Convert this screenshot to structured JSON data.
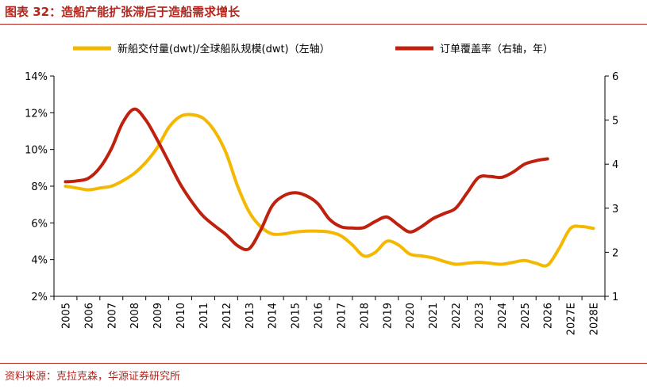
{
  "figure": {
    "title": "图表 32：造船产能扩张滞后于造船需求增长",
    "source": "资料来源：克拉克森，华源证券研究所"
  },
  "chart_data": {
    "type": "line",
    "categories": [
      "2005",
      "2006",
      "2007",
      "2008",
      "2009",
      "2010",
      "2011",
      "2012",
      "2013",
      "2014",
      "2015",
      "2016",
      "2017",
      "2018",
      "2019",
      "2020",
      "2021",
      "2022",
      "2023",
      "2024",
      "2025",
      "2026",
      "2027E",
      "2028E"
    ],
    "y_left": {
      "ylim": [
        0.02,
        0.14
      ],
      "ticks": [
        0.02,
        0.04,
        0.06,
        0.08,
        0.1,
        0.12,
        0.14
      ],
      "tick_labels": [
        "2%",
        "4%",
        "6%",
        "8%",
        "10%",
        "12%",
        "14%"
      ]
    },
    "y_right": {
      "ylim": [
        1,
        6
      ],
      "ticks": [
        1,
        2,
        3,
        4,
        5,
        6
      ],
      "tick_labels": [
        "1",
        "2",
        "3",
        "4",
        "5",
        "6"
      ]
    },
    "legend_position": "top",
    "grid": false,
    "series": [
      {
        "name": "新船交付量(dwt)/全球船队规模(dwt)（左轴）",
        "axis": "left",
        "color": "#f5b800",
        "x": [
          2005,
          2005.5,
          2006,
          2006.5,
          2007,
          2007.5,
          2008,
          2008.5,
          2009,
          2009.5,
          2010,
          2010.5,
          2011,
          2011.5,
          2012,
          2012.5,
          2013,
          2013.5,
          2014,
          2014.5,
          2015,
          2015.5,
          2016,
          2016.5,
          2017,
          2017.5,
          2018,
          2018.5,
          2019,
          2019.5,
          2020,
          2020.5,
          2021,
          2021.5,
          2022,
          2022.5,
          2023,
          2023.5,
          2024,
          2024.5,
          2025,
          2025.5,
          2026,
          2026.5,
          2027,
          2027.5,
          2028
        ],
        "y": [
          0.08,
          0.079,
          0.078,
          0.079,
          0.08,
          0.083,
          0.087,
          0.093,
          0.101,
          0.112,
          0.118,
          0.119,
          0.117,
          0.11,
          0.098,
          0.08,
          0.066,
          0.058,
          0.054,
          0.054,
          0.055,
          0.0555,
          0.0555,
          0.055,
          0.053,
          0.048,
          0.042,
          0.044,
          0.05,
          0.048,
          0.043,
          0.042,
          0.041,
          0.039,
          0.0375,
          0.038,
          0.0385,
          0.038,
          0.0375,
          0.0385,
          0.0395,
          0.038,
          0.037,
          0.046,
          0.057,
          0.058,
          0.057
        ]
      },
      {
        "name": "订单覆盖率（右轴，年）",
        "axis": "right",
        "color": "#c0210f",
        "x": [
          2005,
          2005.5,
          2006,
          2006.5,
          2007,
          2007.5,
          2008,
          2008.5,
          2009,
          2009.5,
          2010,
          2010.5,
          2011,
          2011.5,
          2012,
          2012.5,
          2013,
          2013.5,
          2014,
          2014.5,
          2015,
          2015.5,
          2016,
          2016.5,
          2017,
          2017.5,
          2018,
          2018.5,
          2019,
          2019.5,
          2020,
          2020.5,
          2021,
          2021.5,
          2022,
          2022.5,
          2023,
          2023.5,
          2024,
          2024.5,
          2025,
          2025.5,
          2026
        ],
        "y": [
          3.6,
          3.62,
          3.68,
          3.92,
          4.35,
          4.95,
          5.25,
          5.0,
          4.55,
          4.05,
          3.55,
          3.15,
          2.82,
          2.6,
          2.4,
          2.15,
          2.08,
          2.5,
          3.05,
          3.28,
          3.35,
          3.28,
          3.1,
          2.75,
          2.58,
          2.55,
          2.56,
          2.7,
          2.8,
          2.62,
          2.46,
          2.58,
          2.76,
          2.88,
          3.0,
          3.35,
          3.7,
          3.72,
          3.7,
          3.82,
          4.0,
          4.08,
          4.12
        ]
      }
    ]
  }
}
